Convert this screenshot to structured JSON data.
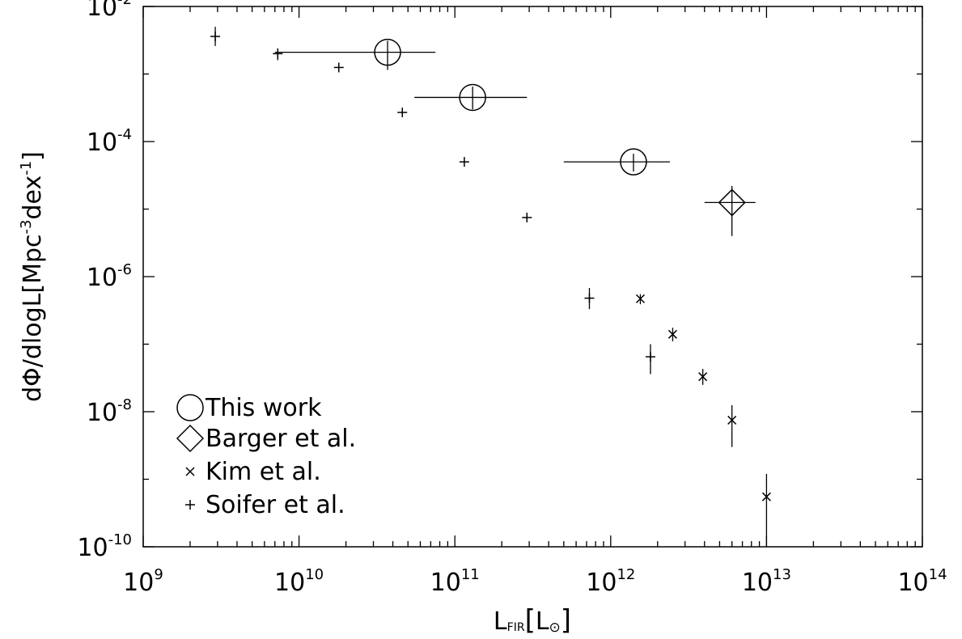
{
  "chart_data": {
    "type": "scatter",
    "x_scale": "log",
    "y_scale": "log",
    "xlim": [
      1000000000.0,
      100000000000000.0
    ],
    "ylim": [
      1e-10,
      0.01
    ],
    "grid": false,
    "legend_position": "bottom-left",
    "xlabel": {
      "main": "L",
      "sub": "FIR",
      "unit_open": "[",
      "unit": "L",
      "unit_sub": "⊙",
      "unit_close": "]"
    },
    "ylabel": {
      "prefix": "dΦ/dlogL[Mpc",
      "exp1": "-3",
      "middle": "dex",
      "exp2": "-1",
      "suffix": "]"
    },
    "x_ticks": [
      {
        "base": "10",
        "exp": "9",
        "value": 1000000000.0
      },
      {
        "base": "10",
        "exp": "10",
        "value": 10000000000.0
      },
      {
        "base": "10",
        "exp": "11",
        "value": 100000000000.0
      },
      {
        "base": "10",
        "exp": "12",
        "value": 1000000000000.0
      },
      {
        "base": "10",
        "exp": "13",
        "value": 10000000000000.0
      },
      {
        "base": "10",
        "exp": "14",
        "value": 100000000000000.0
      }
    ],
    "y_ticks": [
      {
        "base": "10",
        "exp": "-2",
        "value": 0.01
      },
      {
        "base": "10",
        "exp": "-4",
        "value": 0.0001
      },
      {
        "base": "10",
        "exp": "-6",
        "value": 1e-06
      },
      {
        "base": "10",
        "exp": "-8",
        "value": 1e-08
      },
      {
        "base": "10",
        "exp": "-10",
        "value": 1e-10
      }
    ],
    "series": [
      {
        "name": "This work",
        "marker": "circle",
        "points": [
          {
            "x": 37000000000.0,
            "y": 0.0021,
            "xerr": [
              7000000000.0,
              75000000000.0
            ],
            "yerr": [
              0.00115,
              0.0031
            ]
          },
          {
            "x": 130000000000.0,
            "y": 0.00045,
            "xerr": [
              55000000000.0,
              290000000000.0
            ],
            "yerr": [
              0.0003,
              0.00065
            ]
          },
          {
            "x": 1400000000000.0,
            "y": 5e-05,
            "xerr": [
              500000000000.0,
              2400000000000.0
            ],
            "yerr": [
              3.6e-05,
              6.6e-05
            ]
          }
        ]
      },
      {
        "name": "Barger et al.",
        "marker": "diamond",
        "points": [
          {
            "x": 6000000000000.0,
            "y": 1.25e-05,
            "xerr": [
              4000000000000.0,
              8500000000000.0
            ],
            "yerr": [
              4e-06,
              2.2e-05
            ]
          }
        ]
      },
      {
        "name": "Kim et al.",
        "marker": "x",
        "points": [
          {
            "x": 1550000000000.0,
            "y": 4.7e-07,
            "yerr": [
              3.9e-07,
              5.5e-07
            ]
          },
          {
            "x": 2500000000000.0,
            "y": 1.4e-07,
            "yerr": [
              1.1e-07,
              1.75e-07
            ]
          },
          {
            "x": 3900000000000.0,
            "y": 3.3e-08,
            "yerr": [
              2.5e-08,
              4.3e-08
            ]
          },
          {
            "x": 6000000000000.0,
            "y": 7.5e-09,
            "yerr": [
              3e-09,
              1.25e-08
            ]
          },
          {
            "x": 10000000000000.0,
            "y": 5.5e-10,
            "yerr": [
              1e-10,
              1.2e-09
            ]
          }
        ]
      },
      {
        "name": "Soifer et al.",
        "marker": "plus",
        "points": [
          {
            "x": 2900000000.0,
            "y": 0.0036,
            "yerr": [
              0.0026,
              0.005
            ]
          },
          {
            "x": 7300000000.0,
            "y": 0.002,
            "yerr": [
              0.0016,
              0.0024
            ]
          },
          {
            "x": 18000000000.0,
            "y": 0.00125
          },
          {
            "x": 46000000000.0,
            "y": 0.00027
          },
          {
            "x": 115000000000.0,
            "y": 5e-05
          },
          {
            "x": 290000000000.0,
            "y": 7.5e-06
          },
          {
            "x": 730000000000.0,
            "y": 4.8e-07,
            "yerr": [
              3.3e-07,
              6.8e-07
            ]
          },
          {
            "x": 1800000000000.0,
            "y": 6.5e-08,
            "yerr": [
              3.6e-08,
              1e-07
            ]
          }
        ]
      }
    ],
    "legend": [
      {
        "name": "This work",
        "marker": "circle"
      },
      {
        "name": "Barger et al.",
        "marker": "diamond"
      },
      {
        "name": "Kim et al.",
        "marker": "x"
      },
      {
        "name": "Soifer et al.",
        "marker": "plus"
      }
    ]
  }
}
